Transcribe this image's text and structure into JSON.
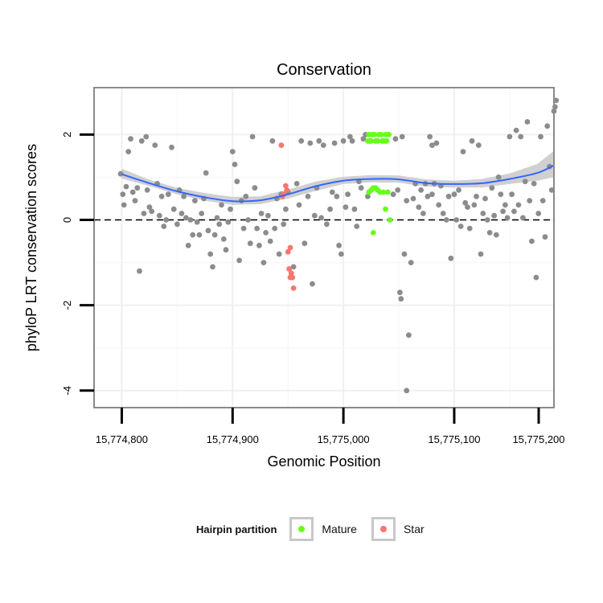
{
  "chart_data": {
    "type": "scatter",
    "title": "Conservation",
    "xlabel": "Genomic Position",
    "ylabel": "phyloP LRT conservation scores",
    "xlim": [
      15774775,
      15775190
    ],
    "ylim": [
      -4.4,
      3.1
    ],
    "xticks": [
      15774800,
      15774900,
      15775000,
      15775100,
      15775200
    ],
    "xtick_labels": [
      "15,774,800",
      "15,774,900",
      "15,775,000",
      "15,775,100",
      "15,775,200"
    ],
    "yticks": [
      -4,
      -2,
      0,
      2
    ],
    "ytick_labels": [
      "-4",
      "-2",
      "0",
      "2"
    ],
    "reference_line": {
      "y": 0,
      "style": "dashed"
    },
    "grid": true,
    "legend": {
      "title": "Hairpin partition",
      "position": "bottom",
      "entries": [
        {
          "label": "Mature",
          "color": "#66ff1a"
        },
        {
          "label": "Star",
          "color": "#f8766d"
        }
      ]
    },
    "colors": {
      "other": "#8c8c8c",
      "mature": "#66ff1a",
      "star": "#f8766d",
      "smooth": "#3366ff",
      "ribbon": "#c8c8c8"
    },
    "smooth": {
      "x": [
        15774800,
        15774825,
        15774850,
        15774875,
        15774900,
        15774925,
        15774950,
        15774975,
        15775000,
        15775025,
        15775050,
        15775075,
        15775100,
        15775125,
        15775150,
        15775175,
        15775190
      ],
      "y": [
        1.07,
        0.86,
        0.67,
        0.53,
        0.44,
        0.46,
        0.6,
        0.79,
        0.92,
        0.96,
        0.95,
        0.86,
        0.84,
        0.86,
        0.96,
        1.1,
        1.28
      ],
      "lower": [
        0.97,
        0.79,
        0.6,
        0.45,
        0.35,
        0.37,
        0.5,
        0.68,
        0.84,
        0.88,
        0.87,
        0.78,
        0.76,
        0.76,
        0.84,
        0.92,
        1.0
      ],
      "upper": [
        1.2,
        0.94,
        0.75,
        0.63,
        0.54,
        0.55,
        0.71,
        0.9,
        1.01,
        1.05,
        1.04,
        0.95,
        0.92,
        0.96,
        1.09,
        1.31,
        1.62
      ]
    },
    "series": [
      {
        "name": "Other",
        "points": [
          [
            15774799,
            1.08
          ],
          [
            15774801,
            0.6
          ],
          [
            15774802,
            0.35
          ],
          [
            15774804,
            0.78
          ],
          [
            15774806,
            1.6
          ],
          [
            15774808,
            1.9
          ],
          [
            15774810,
            0.65
          ],
          [
            15774812,
            0.45
          ],
          [
            15774814,
            0.75
          ],
          [
            15774816,
            -1.2
          ],
          [
            15774818,
            1.85
          ],
          [
            15774820,
            0.15
          ],
          [
            15774822,
            1.95
          ],
          [
            15774823,
            0.7
          ],
          [
            15774825,
            0.3
          ],
          [
            15774827,
            0.2
          ],
          [
            15774830,
            1.75
          ],
          [
            15774832,
            0.85
          ],
          [
            15774834,
            0.1
          ],
          [
            15774836,
            0.55
          ],
          [
            15774838,
            -0.15
          ],
          [
            15774840,
            0.0
          ],
          [
            15774842,
            0.6
          ],
          [
            15774845,
            1.7
          ],
          [
            15774847,
            0.25
          ],
          [
            15774850,
            -0.1
          ],
          [
            15774852,
            0.7
          ],
          [
            15774854,
            0.15
          ],
          [
            15774856,
            0.55
          ],
          [
            15774858,
            0.05
          ],
          [
            15774860,
            -0.6
          ],
          [
            15774862,
            0.0
          ],
          [
            15774864,
            -0.35
          ],
          [
            15774866,
            0.45
          ],
          [
            15774868,
            -0.05
          ],
          [
            15774870,
            -0.35
          ],
          [
            15774872,
            0.15
          ],
          [
            15774874,
            0.5
          ],
          [
            15774876,
            1.1
          ],
          [
            15774878,
            -0.25
          ],
          [
            15774880,
            -0.8
          ],
          [
            15774882,
            -1.1
          ],
          [
            15774884,
            -0.35
          ],
          [
            15774886,
            0.05
          ],
          [
            15774888,
            -0.1
          ],
          [
            15774890,
            0.35
          ],
          [
            15774892,
            -0.45
          ],
          [
            15774894,
            -0.7
          ],
          [
            15774896,
            -0.05
          ],
          [
            15774898,
            0.25
          ],
          [
            15774900,
            1.6
          ],
          [
            15774902,
            1.3
          ],
          [
            15774904,
            0.9
          ],
          [
            15774906,
            -0.95
          ],
          [
            15774908,
            0.45
          ],
          [
            15774910,
            -0.2
          ],
          [
            15774912,
            0.55
          ],
          [
            15774914,
            0.0
          ],
          [
            15774916,
            -0.55
          ],
          [
            15774918,
            1.95
          ],
          [
            15774920,
            0.75
          ],
          [
            15774922,
            -0.2
          ],
          [
            15774924,
            -0.6
          ],
          [
            15774926,
            0.15
          ],
          [
            15774928,
            -1.0
          ],
          [
            15774930,
            -0.3
          ],
          [
            15774932,
            0.1
          ],
          [
            15774934,
            -0.5
          ],
          [
            15774936,
            1.85
          ],
          [
            15774938,
            -0.2
          ],
          [
            15774940,
            0.5
          ],
          [
            15774942,
            -0.8
          ],
          [
            15774944,
            0.6
          ],
          [
            15774946,
            -0.1
          ],
          [
            15774948,
            0.25
          ],
          [
            15774950,
            0.65
          ],
          [
            15774955,
            -1.1
          ],
          [
            15774958,
            0.85
          ],
          [
            15774960,
            0.35
          ],
          [
            15774962,
            1.85
          ],
          [
            15774965,
            -0.55
          ],
          [
            15774968,
            0.55
          ],
          [
            15774970,
            1.8
          ],
          [
            15774972,
            -1.5
          ],
          [
            15774974,
            0.1
          ],
          [
            15774976,
            0.75
          ],
          [
            15774978,
            1.85
          ],
          [
            15774980,
            0.05
          ],
          [
            15774982,
            1.75
          ],
          [
            15774985,
            -0.1
          ],
          [
            15774988,
            0.25
          ],
          [
            15774990,
            0.65
          ],
          [
            15774992,
            1.8
          ],
          [
            15774994,
            0.55
          ],
          [
            15774996,
            -0.6
          ],
          [
            15774998,
            -0.8
          ],
          [
            15775000,
            1.85
          ],
          [
            15775002,
            0.3
          ],
          [
            15775004,
            0.6
          ],
          [
            15775006,
            1.95
          ],
          [
            15775008,
            1.85
          ],
          [
            15775010,
            0.25
          ],
          [
            15775012,
            -0.15
          ],
          [
            15775014,
            0.9
          ],
          [
            15775016,
            0.75
          ],
          [
            15775018,
            1.9
          ],
          [
            15775020,
            2.0
          ],
          [
            15775022,
            0.55
          ],
          [
            15775024,
            1.85
          ],
          [
            15775045,
            0.6
          ],
          [
            15775047,
            1.9
          ],
          [
            15775049,
            0.7
          ],
          [
            15775051,
            -1.7
          ],
          [
            15775053,
            1.95
          ],
          [
            15775055,
            -0.8
          ],
          [
            15775057,
            0.45
          ],
          [
            15775059,
            -2.7
          ],
          [
            15775061,
            -1.0
          ],
          [
            15775063,
            0.5
          ],
          [
            15775065,
            0.85
          ],
          [
            15775068,
            0.3
          ],
          [
            15775070,
            0.7
          ],
          [
            15775072,
            0.15
          ],
          [
            15775074,
            0.85
          ],
          [
            15775076,
            0.55
          ],
          [
            15775078,
            1.95
          ],
          [
            15775080,
            0.6
          ],
          [
            15775082,
            0.85
          ],
          [
            15775084,
            1.8
          ],
          [
            15775086,
            0.35
          ],
          [
            15775088,
            0.8
          ],
          [
            15775090,
            0.15
          ],
          [
            15775093,
            0.0
          ],
          [
            15775095,
            0.55
          ],
          [
            15775097,
            -0.9
          ],
          [
            15775100,
            0.6
          ],
          [
            15775102,
            0.0
          ],
          [
            15775104,
            0.7
          ],
          [
            15775106,
            -0.15
          ],
          [
            15775108,
            1.6
          ],
          [
            15775110,
            0.4
          ],
          [
            15775112,
            0.3
          ],
          [
            15775114,
            -0.2
          ],
          [
            15775116,
            1.85
          ],
          [
            15775118,
            0.35
          ],
          [
            15775120,
            0.55
          ],
          [
            15775122,
            1.75
          ],
          [
            15775124,
            -0.8
          ],
          [
            15775126,
            0.15
          ],
          [
            15775128,
            0.5
          ],
          [
            15775130,
            0.0
          ],
          [
            15775132,
            -0.3
          ],
          [
            15775134,
            0.75
          ],
          [
            15775136,
            0.1
          ],
          [
            15775138,
            -0.35
          ],
          [
            15775140,
            1.0
          ],
          [
            15775142,
            0.6
          ],
          [
            15775144,
            0.2
          ],
          [
            15775146,
            0.35
          ],
          [
            15775148,
            0.05
          ],
          [
            15775150,
            1.95
          ],
          [
            15775152,
            0.6
          ],
          [
            15775154,
            0.2
          ],
          [
            15775156,
            2.1
          ],
          [
            15775158,
            0.35
          ],
          [
            15775160,
            1.95
          ],
          [
            15775162,
            0.05
          ],
          [
            15775164,
            0.9
          ],
          [
            15775166,
            2.3
          ],
          [
            15775168,
            0.45
          ],
          [
            15775170,
            -0.5
          ],
          [
            15775172,
            0.85
          ],
          [
            15775174,
            -1.35
          ],
          [
            15775176,
            0.15
          ],
          [
            15775178,
            1.95
          ],
          [
            15775180,
            0.45
          ],
          [
            15775182,
            -0.4
          ],
          [
            15775184,
            2.2
          ],
          [
            15775186,
            1.25
          ],
          [
            15775188,
            0.7
          ],
          [
            15775190,
            2.55
          ],
          [
            15775191,
            2.65
          ],
          [
            15775192,
            2.8
          ],
          [
            15775052,
            -1.85
          ],
          [
            15775057,
            -4.0
          ],
          [
            15775080,
            1.75
          ]
        ]
      },
      {
        "name": "Mature",
        "points": [
          [
            15775022,
            1.85
          ],
          [
            15775023,
            2.0
          ],
          [
            15775025,
            1.85
          ],
          [
            15775026,
            2.0
          ],
          [
            15775028,
            2.0
          ],
          [
            15775029,
            1.85
          ],
          [
            15775031,
            1.85
          ],
          [
            15775032,
            2.0
          ],
          [
            15775034,
            2.0
          ],
          [
            15775035,
            1.85
          ],
          [
            15775037,
            1.85
          ],
          [
            15775038,
            2.0
          ],
          [
            15775039,
            1.85
          ],
          [
            15775041,
            2.0
          ],
          [
            15775023,
            0.65
          ],
          [
            15775025,
            0.7
          ],
          [
            15775027,
            0.75
          ],
          [
            15775029,
            0.75
          ],
          [
            15775031,
            0.7
          ],
          [
            15775033,
            0.65
          ],
          [
            15775036,
            0.65
          ],
          [
            15775038,
            0.25
          ],
          [
            15775040,
            0.65
          ],
          [
            15775042,
            0.0
          ],
          [
            15775027,
            -0.3
          ]
        ]
      },
      {
        "name": "Star",
        "points": [
          [
            15774944,
            1.75
          ],
          [
            15774946,
            0.6
          ],
          [
            15774948,
            0.8
          ],
          [
            15774949,
            0.7
          ],
          [
            15774950,
            -0.75
          ],
          [
            15774952,
            -0.65
          ],
          [
            15774951,
            -1.15
          ],
          [
            15774953,
            -1.25
          ],
          [
            15774952,
            -1.35
          ],
          [
            15774954,
            -1.35
          ],
          [
            15774955,
            -1.6
          ],
          [
            15774945,
            0.55
          ]
        ]
      }
    ]
  }
}
